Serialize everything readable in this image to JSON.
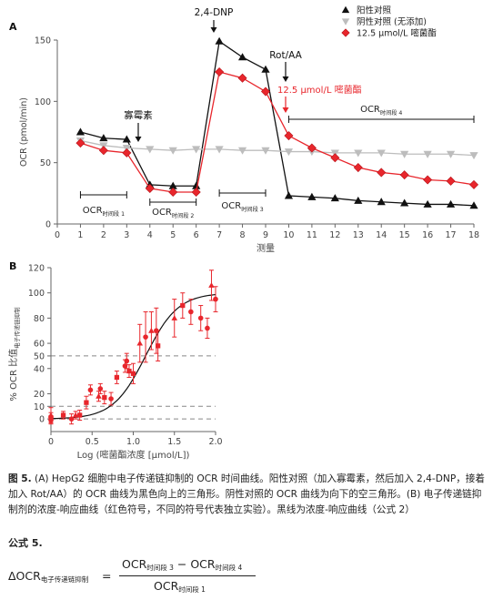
{
  "chart_data": [
    {
      "panel": "A",
      "type": "line",
      "xlabel": "测量",
      "ylabel": "OCR (pmol/min)",
      "xlim": [
        0,
        18
      ],
      "ylim": [
        0,
        150
      ],
      "xticks": [
        "0",
        "1",
        "2",
        "3",
        "4",
        "5",
        "6",
        "7",
        "8",
        "9",
        "10",
        "11",
        "12",
        "13",
        "14",
        "15",
        "16",
        "17",
        "18"
      ],
      "yticks": [
        "0",
        "50",
        "100",
        "150"
      ],
      "x": [
        1,
        2,
        3,
        4,
        5,
        6,
        7,
        8,
        9,
        10,
        11,
        12,
        13,
        14,
        15,
        16,
        17,
        18
      ],
      "series": [
        {
          "name": "阳性对照",
          "color": "#111111",
          "marker": "triangle-up",
          "values": [
            75,
            70,
            69,
            32,
            31,
            31,
            149,
            136,
            126,
            23,
            22,
            21,
            19,
            18,
            17,
            16,
            16,
            15
          ]
        },
        {
          "name": "阴性对照 (无添加)",
          "color": "#bdbdbd",
          "marker": "triangle-down",
          "values": [
            68,
            64,
            62,
            61,
            60,
            61,
            61,
            60,
            60,
            59,
            59,
            58,
            58,
            58,
            57,
            57,
            57,
            56
          ]
        },
        {
          "name": "12.5 μmol/L 嘧菌酯",
          "color": "#e8262c",
          "marker": "diamond",
          "values": [
            66,
            60,
            58,
            29,
            26,
            26,
            124,
            119,
            108,
            72,
            62,
            54,
            46,
            42,
            40,
            36,
            35,
            32
          ]
        }
      ],
      "annotations": [
        {
          "text": "2,4-DNP"
        },
        {
          "text": "Rot/AA"
        },
        {
          "text": "寡霉素"
        },
        {
          "text": "12.5 μmol/L 嘧菌酯"
        }
      ],
      "period_labels": [
        {
          "main": "OCR",
          "sub": "时间段 1"
        },
        {
          "main": "OCR",
          "sub": "时间段 2"
        },
        {
          "main": "OCR",
          "sub": "时间段 3"
        },
        {
          "main": "OCR",
          "sub": "时间段 4"
        }
      ]
    },
    {
      "panel": "B",
      "type": "scatter",
      "xlabel": "Log (嘧菌酯浓度 [μmol/L])",
      "ylabel_main": "% OCR 比值",
      "ylabel_sub": "电子传递链抑制",
      "xlim": [
        0,
        2.0
      ],
      "ylim": [
        -10,
        120
      ],
      "xticks": [
        "0",
        "0.5",
        "1.0",
        "1.5",
        "2.0"
      ],
      "yticks": [
        "0",
        "10",
        "20",
        "40",
        "50",
        "60",
        "80",
        "100",
        "120"
      ],
      "dashed_lines": [
        0,
        10,
        50
      ],
      "points": [
        {
          "x": 0.0,
          "y": -1,
          "err": 3,
          "m": "circle"
        },
        {
          "x": 0.0,
          "y": 1,
          "err": 4,
          "m": "square"
        },
        {
          "x": 0.0,
          "y": 3,
          "err": 6,
          "m": "triangle"
        },
        {
          "x": 0.15,
          "y": 3,
          "err": 3,
          "m": "square"
        },
        {
          "x": 0.25,
          "y": 0,
          "err": 4,
          "m": "circle"
        },
        {
          "x": 0.3,
          "y": 3,
          "err": 3,
          "m": "triangle"
        },
        {
          "x": 0.35,
          "y": 3,
          "err": 4,
          "m": "square"
        },
        {
          "x": 0.43,
          "y": 13,
          "err": 5,
          "m": "square"
        },
        {
          "x": 0.48,
          "y": 23,
          "err": 4,
          "m": "circle"
        },
        {
          "x": 0.58,
          "y": 18,
          "err": 4,
          "m": "triangle"
        },
        {
          "x": 0.6,
          "y": 24,
          "err": 4,
          "m": "circle"
        },
        {
          "x": 0.65,
          "y": 17,
          "err": 5,
          "m": "square"
        },
        {
          "x": 0.73,
          "y": 16,
          "err": 5,
          "m": "circle"
        },
        {
          "x": 0.8,
          "y": 33,
          "err": 5,
          "m": "square"
        },
        {
          "x": 0.9,
          "y": 42,
          "err": 5,
          "m": "circle"
        },
        {
          "x": 0.92,
          "y": 46,
          "err": 6,
          "m": "circle"
        },
        {
          "x": 0.95,
          "y": 38,
          "err": 5,
          "m": "square"
        },
        {
          "x": 1.0,
          "y": 36,
          "err": 8,
          "m": "square"
        },
        {
          "x": 1.08,
          "y": 60,
          "err": 15,
          "m": "triangle"
        },
        {
          "x": 1.15,
          "y": 65,
          "err": 20,
          "m": "circle"
        },
        {
          "x": 1.22,
          "y": 70,
          "err": 15,
          "m": "triangle"
        },
        {
          "x": 1.28,
          "y": 70,
          "err": 18,
          "m": "circle"
        },
        {
          "x": 1.3,
          "y": 58,
          "err": 12,
          "m": "square"
        },
        {
          "x": 1.5,
          "y": 80,
          "err": 15,
          "m": "triangle"
        },
        {
          "x": 1.6,
          "y": 90,
          "err": 10,
          "m": "square"
        },
        {
          "x": 1.7,
          "y": 85,
          "err": 10,
          "m": "circle"
        },
        {
          "x": 1.82,
          "y": 80,
          "err": 10,
          "m": "circle"
        },
        {
          "x": 1.9,
          "y": 72,
          "err": 8,
          "m": "circle"
        },
        {
          "x": 1.95,
          "y": 106,
          "err": 12,
          "m": "triangle"
        },
        {
          "x": 2.0,
          "y": 95,
          "err": 10,
          "m": "circle"
        }
      ],
      "curve": {
        "bottom": 0,
        "top": 100,
        "log_ec50": 1.15,
        "hill": 2.2
      }
    }
  ],
  "caption": {
    "label": "图 5.",
    "text": " (A) HepG2 细胞中电子传递链抑制的 OCR 时间曲线。阳性对照（加入寡霉素，然后加入 2,4-DNP，接着加入 Rot/AA）的 OCR 曲线为黑色向上的三角形。阴性对照的 OCR 曲线为向下的空三角形。(B) 电子传递链抑制剂的浓度-响应曲线（红色符号，不同的符号代表独立实验）。黑线为浓度-响应曲线（公式 2）"
  },
  "formula": {
    "title": "公式 5.",
    "lhs_main": "ΔOCR",
    "lhs_sub": "电子传递链抑制",
    "eq": "=",
    "num_a": "OCR",
    "num_a_sub": "时间段 3",
    "minus": " − ",
    "num_b": "OCR",
    "num_b_sub": "时间段 4",
    "den": "OCR",
    "den_sub": "时间段 1"
  }
}
